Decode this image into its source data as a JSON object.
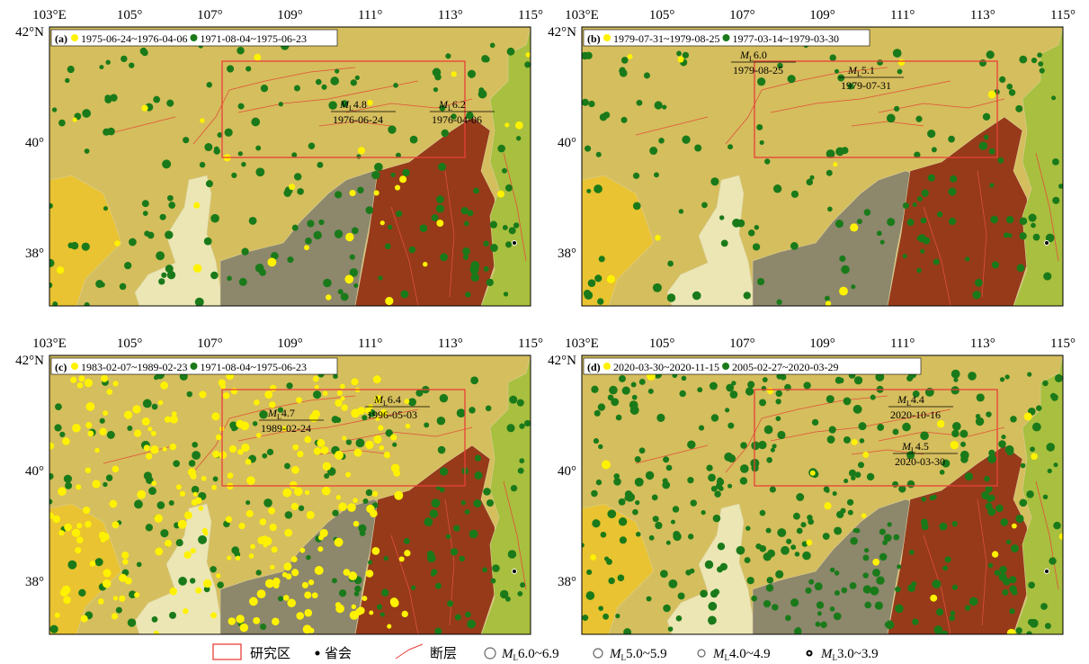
{
  "axes": {
    "lon": [
      "103°E",
      "105°",
      "107°",
      "109°",
      "111°",
      "113°",
      "115°"
    ],
    "lat": [
      "42°N",
      "40°",
      "38°"
    ]
  },
  "panels": [
    {
      "label": "(a)",
      "legend": [
        "1975-06-24~1976-04-06",
        "1971-08-04~1975-06-23"
      ],
      "annotations": [
        {
          "m": "M",
          "sub": "L",
          "mag": "4.8",
          "date": "1976-06-24"
        },
        {
          "m": "M",
          "sub": "L",
          "mag": "6.2",
          "date": "1976-04-06"
        }
      ]
    },
    {
      "label": "(b)",
      "legend": [
        "1979-07-31~1979-08-25",
        "1977-03-14~1979-03-30"
      ],
      "annotations": [
        {
          "m": "M",
          "sub": "L",
          "mag": "6.0",
          "date": "1979-08-25"
        },
        {
          "m": "M",
          "sub": "L",
          "mag": "5.1",
          "date": "1979-07-31"
        }
      ]
    },
    {
      "label": "(c)",
      "legend": [
        "1983-02-07~1989-02-23",
        "1971-08-04~1975-06-23"
      ],
      "annotations": [
        {
          "m": "M",
          "sub": "L",
          "mag": "4.7",
          "date": "1989-02-24"
        },
        {
          "m": "M",
          "sub": "L",
          "mag": "6.4",
          "date": "1996-05-03"
        }
      ]
    },
    {
      "label": "(d)",
      "legend": [
        "2020-03-30~2020-11-15",
        "2005-02-27~2020-03-29"
      ],
      "annotations": [
        {
          "m": "M",
          "sub": "L",
          "mag": "4.4",
          "date": "2020-10-16"
        },
        {
          "m": "M",
          "sub": "L",
          "mag": "4.5",
          "date": "2020-03-30"
        }
      ]
    }
  ],
  "legend": {
    "study": "研究区",
    "capital": "省会",
    "fault": "断层",
    "mags": [
      {
        "m": "M",
        "sub": "L",
        "range": "6.0~6.9"
      },
      {
        "m": "M",
        "sub": "L",
        "range": "5.0~5.9"
      },
      {
        "m": "M",
        "sub": "L",
        "range": "4.0~4.9"
      },
      {
        "m": "M",
        "sub": "L",
        "range": "3.0~3.9"
      }
    ]
  }
}
